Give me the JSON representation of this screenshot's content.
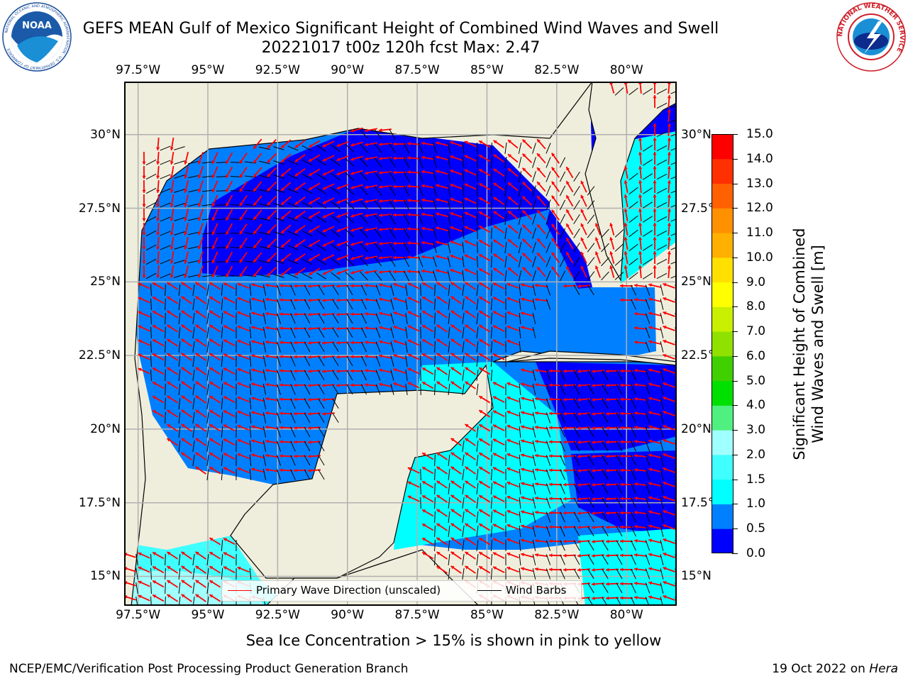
{
  "header": {
    "title_line1": "GEFS MEAN Gulf of Mexico Significant Height of Combined Wind Waves and Swell",
    "title_line2": "20221017 t00z 120h fcst   Max: 2.47"
  },
  "logos": {
    "left": {
      "text": "NOAA",
      "ring_text": "NATIONAL OCEANIC AND ATMOSPHERIC ADMINISTRATION · U.S. DEPARTMENT OF COMMERCE"
    },
    "right": {
      "ring_text": "NATIONAL WEATHER SERVICE"
    }
  },
  "map": {
    "lon_labels": [
      "97.5°W",
      "95°W",
      "92.5°W",
      "90°W",
      "87.5°W",
      "85°W",
      "82.5°W",
      "80°W"
    ],
    "lat_labels": [
      "30°N",
      "27.5°N",
      "25°N",
      "22.5°N",
      "20°N",
      "17.5°N",
      "15°N"
    ],
    "lon_values": [
      -97.5,
      -95,
      -92.5,
      -90,
      -87.5,
      -85,
      -82.5,
      -80
    ],
    "lat_values": [
      30,
      27.5,
      25,
      22.5,
      20,
      17.5,
      15
    ],
    "extent": {
      "lon_min": -98,
      "lon_max": -78.2,
      "lat_min": 14.0,
      "lat_max": 31.8
    },
    "colors": {
      "land": "#efeedc",
      "grid": "#b0b0b0",
      "coast": "#000000",
      "wave_arrow": "#ff0000",
      "wind_barb": "#000000"
    }
  },
  "legend": {
    "wave_label": "Primary Wave Direction (unscaled)",
    "barb_label": "Wind Barbs"
  },
  "colorbar": {
    "label_line1": "Significant Height of Combined",
    "label_line2": "Wind Waves and Swell [m]",
    "ticks": [
      "0.0",
      "0.5",
      "1.0",
      "1.5",
      "2.0",
      "3.0",
      "4.0",
      "5.0",
      "6.0",
      "7.0",
      "8.0",
      "9.0",
      "10.0",
      "11.0",
      "12.0",
      "13.0",
      "14.0",
      "15.0"
    ],
    "colors": [
      "#0000ff",
      "#0080ff",
      "#00ffff",
      "#40ffff",
      "#a0ffff",
      "#50f080",
      "#00e000",
      "#40d000",
      "#90e000",
      "#c8f000",
      "#ffff00",
      "#ffe000",
      "#ffb000",
      "#ff9000",
      "#ff6000",
      "#ff3000",
      "#ff0000"
    ]
  },
  "annotation": "Sea Ice Concentration > 15% is shown in pink to yellow",
  "footer": {
    "left": "NCEP/EMC/Verification Post Processing Product Generation Branch",
    "right_date": "19 Oct 2022 on ",
    "right_host": "Hera"
  }
}
